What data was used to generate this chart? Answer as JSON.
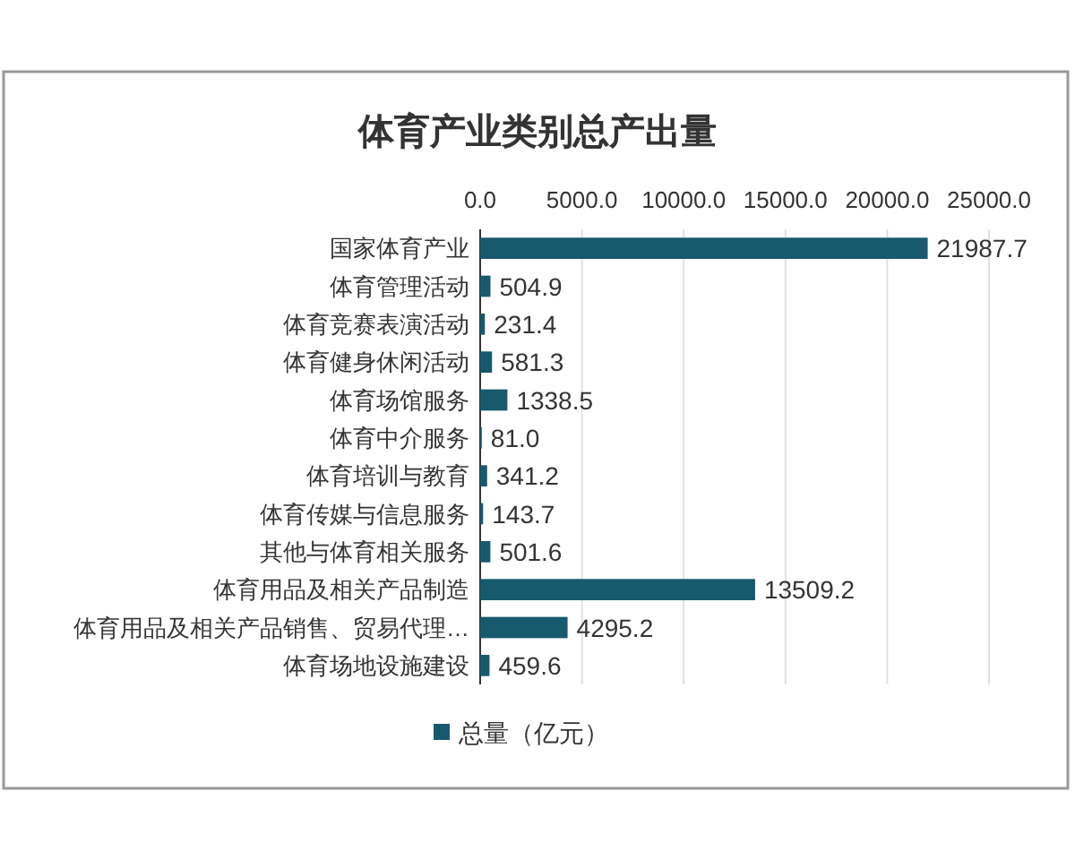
{
  "chart_data": {
    "type": "bar",
    "orientation": "horizontal",
    "title": "体育产业类别总产出量",
    "categories": [
      "国家体育产业",
      "体育管理活动",
      "体育竞赛表演活动",
      "体育健身休闲活动",
      "体育场馆服务",
      "体育中介服务",
      "体育培训与教育",
      "体育传媒与信息服务",
      "其他与体育相关服务",
      "体育用品及相关产品制造",
      "体育用品及相关产品销售、贸易代理…",
      "体育场地设施建设"
    ],
    "series": [
      {
        "name": "总量（亿元）",
        "color": "#175a6e",
        "values": [
          21987.7,
          504.9,
          231.4,
          581.3,
          1338.5,
          81.0,
          341.2,
          143.7,
          501.6,
          13509.2,
          4295.2,
          459.6
        ],
        "value_labels": [
          "21987.7",
          "504.9",
          "231.4",
          "581.3",
          "1338.5",
          "81.0",
          "341.2",
          "143.7",
          "501.6",
          "13509.2",
          "4295.2",
          "459.6"
        ]
      }
    ],
    "xlim": [
      0,
      25000
    ],
    "xticks": [
      {
        "value": 0,
        "label": "0.0"
      },
      {
        "value": 5000,
        "label": "5000.0"
      },
      {
        "value": 10000,
        "label": "10000.0"
      },
      {
        "value": 15000,
        "label": "15000.0"
      },
      {
        "value": 20000,
        "label": "20000.0"
      },
      {
        "value": 25000,
        "label": "25000.0"
      }
    ],
    "grid": "x",
    "legend": "bottom"
  }
}
